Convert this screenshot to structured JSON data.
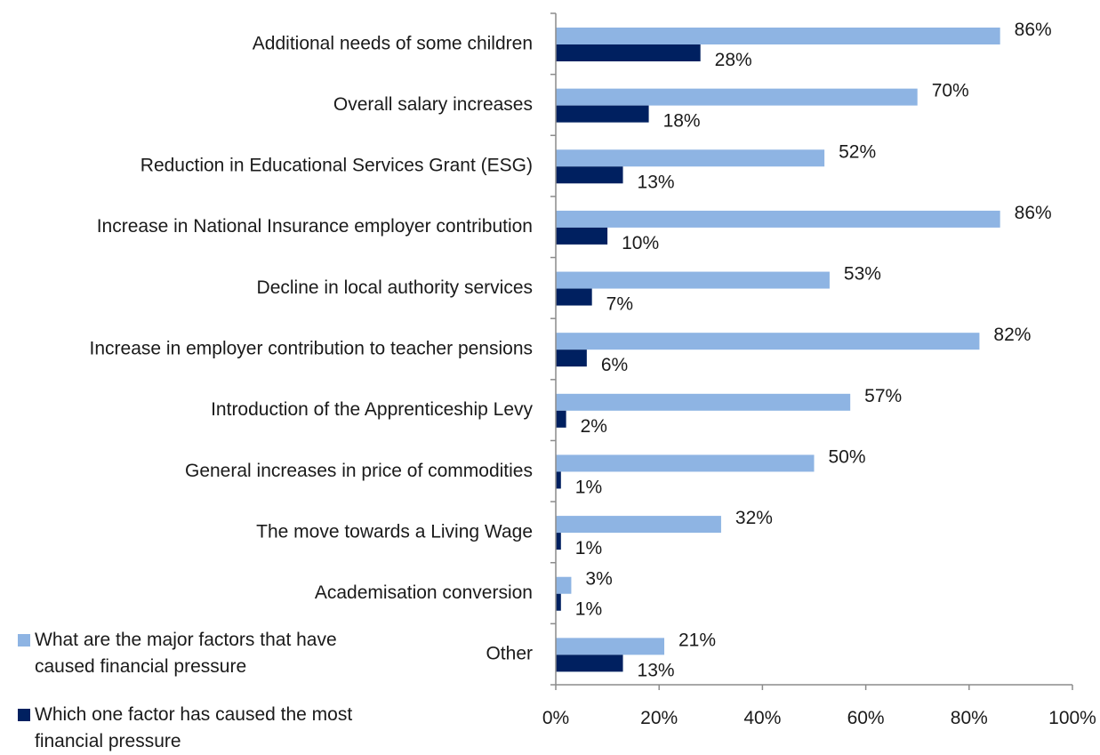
{
  "chart_data": {
    "type": "bar",
    "orientation": "horizontal",
    "categories": [
      "Additional needs of some children",
      "Overall salary increases",
      "Reduction in Educational Services Grant (ESG)",
      "Increase in National Insurance employer contribution",
      "Decline in local authority services",
      "Increase in employer contribution to teacher pensions",
      "Introduction of the Apprenticeship Levy",
      "General increases in price of commodities",
      "The move towards a Living Wage",
      "Academisation conversion",
      "Other"
    ],
    "series": [
      {
        "name": "What are the major factors that have caused financial pressure",
        "color": "#8EB4E3",
        "values": [
          86,
          70,
          52,
          86,
          53,
          82,
          57,
          50,
          32,
          3,
          21
        ],
        "labels": [
          "86%",
          "70%",
          "52%",
          "86%",
          "53%",
          "82%",
          "57%",
          "50%",
          "32%",
          "3%",
          "21%"
        ]
      },
      {
        "name": "Which one factor has caused the most financial pressure",
        "color": "#002060",
        "values": [
          28,
          18,
          13,
          10,
          7,
          6,
          2,
          1,
          1,
          1,
          13
        ],
        "labels": [
          "28%",
          "18%",
          "13%",
          "10%",
          "7%",
          "6%",
          "2%",
          "1%",
          "1%",
          "1%",
          "13%"
        ]
      }
    ],
    "xlim": [
      0,
      100
    ],
    "xticks": [
      "0%",
      "20%",
      "40%",
      "60%",
      "80%",
      "100%"
    ],
    "grid": false,
    "legend_position": "bottom-left",
    "title": "",
    "xlabel": "",
    "ylabel": ""
  }
}
